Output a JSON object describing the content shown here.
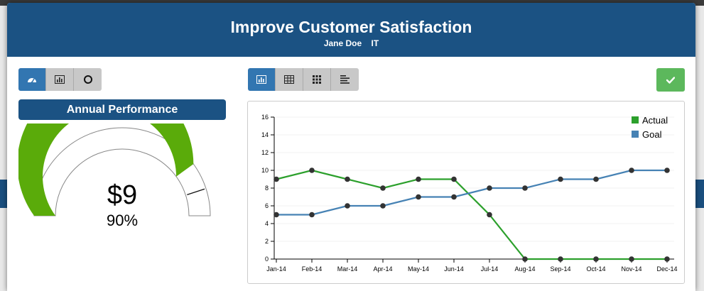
{
  "modal": {
    "title": "Improve Customer Satisfaction",
    "owner": "Jane Doe",
    "department": "IT"
  },
  "left_toolbar": [
    {
      "icon": "dashboard-icon",
      "active": true
    },
    {
      "icon": "bar-chart-icon",
      "active": false
    },
    {
      "icon": "circle-icon",
      "active": false
    }
  ],
  "right_toolbar": [
    {
      "icon": "bar-chart-icon",
      "active": true
    },
    {
      "icon": "table-icon",
      "active": false
    },
    {
      "icon": "grid-icon",
      "active": false
    },
    {
      "icon": "align-left-icon",
      "active": false
    }
  ],
  "confirm_icon": "checkmark-icon",
  "gauge": {
    "title": "Annual Performance",
    "value": "$9",
    "percent_label": "90%",
    "fraction": 0.9,
    "fill_color": "#5aab0a"
  },
  "chart_data": {
    "type": "line",
    "categories": [
      "Jan-14",
      "Feb-14",
      "Mar-14",
      "Apr-14",
      "May-14",
      "Jun-14",
      "Jul-14",
      "Aug-14",
      "Sep-14",
      "Oct-14",
      "Nov-14",
      "Dec-14"
    ],
    "ylim": [
      0,
      16
    ],
    "yticks": [
      0,
      2,
      4,
      6,
      8,
      10,
      12,
      14,
      16
    ],
    "legend_position": "top-right",
    "series": [
      {
        "name": "Actual",
        "color": "#2ca02c",
        "values": [
          9,
          10,
          9,
          8,
          9,
          9,
          5,
          0,
          0,
          0,
          0,
          0
        ]
      },
      {
        "name": "Goal",
        "color": "#4682b4",
        "values": [
          5,
          5,
          6,
          6,
          7,
          7,
          8,
          8,
          9,
          9,
          10,
          10
        ]
      }
    ]
  }
}
